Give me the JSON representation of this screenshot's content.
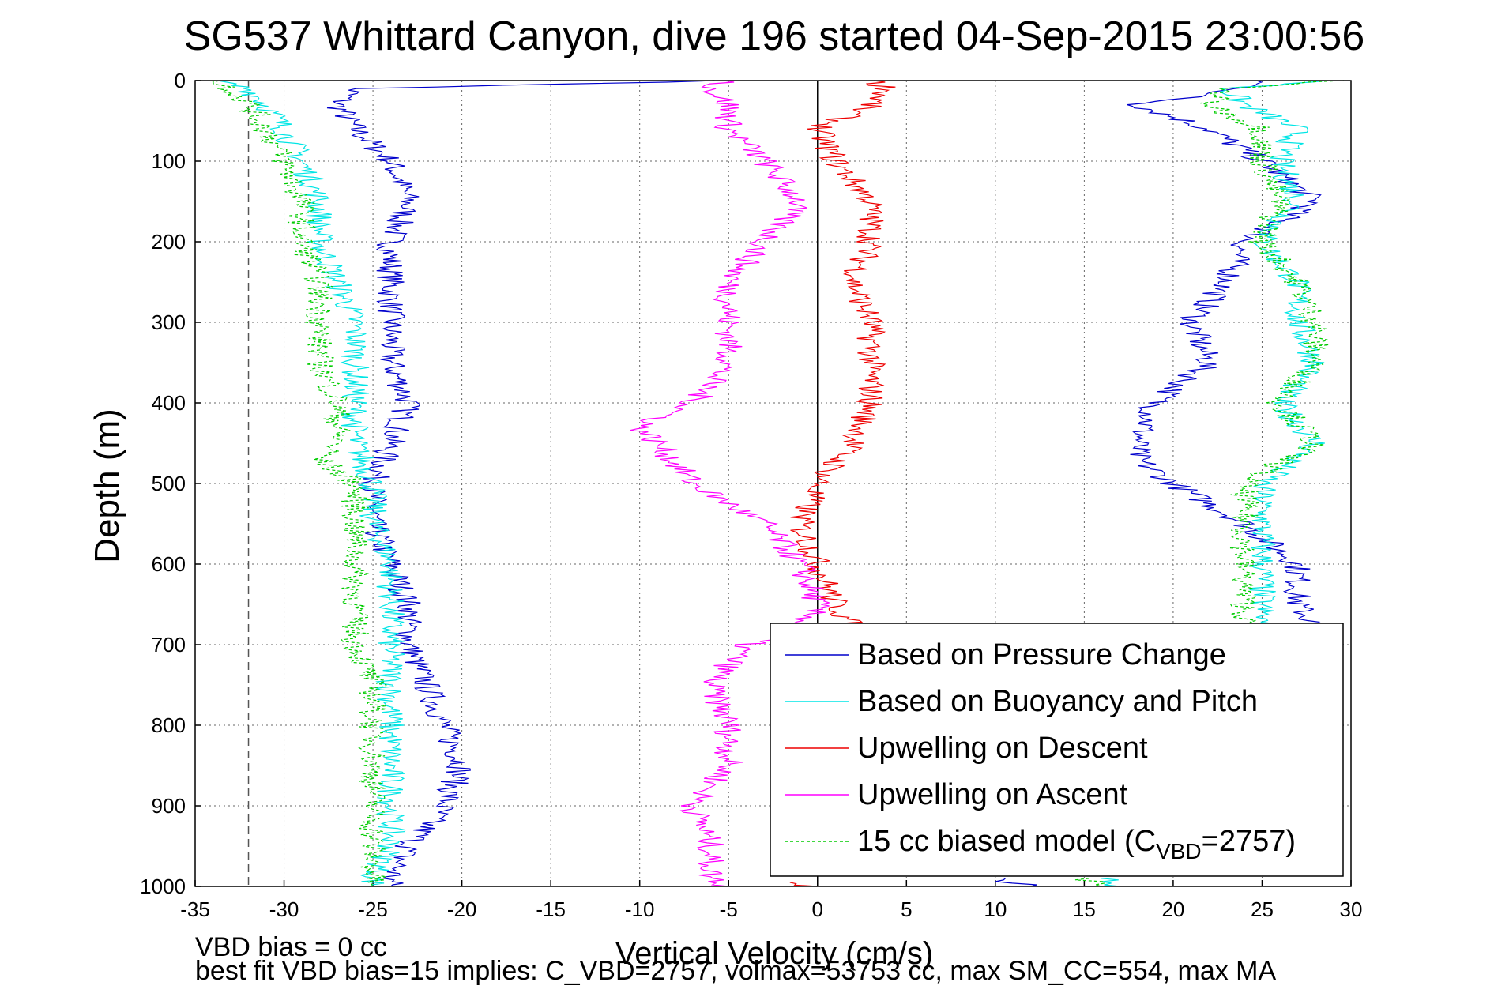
{
  "chart_data": {
    "type": "line",
    "title": "SG537 Whittard Canyon, dive 196 started 04-Sep-2015 23:00:56",
    "xlabel": "Vertical Velocity (cm/s)",
    "ylabel": "Depth (m)",
    "xlim": [
      -35,
      30
    ],
    "ylim": [
      1000,
      0
    ],
    "y_inverted": true,
    "grid": true,
    "legend_position": "bottom-right",
    "x_ticks": [
      "-35",
      "-30",
      "-25",
      "-20",
      "-15",
      "-10",
      "-5",
      "0",
      "5",
      "10",
      "15",
      "20",
      "25",
      "30"
    ],
    "y_ticks": [
      "0",
      "100",
      "200",
      "300",
      "400",
      "500",
      "600",
      "700",
      "800",
      "900",
      "1000"
    ],
    "reference_lines": [
      {
        "axis": "x",
        "value": -32,
        "style": "dashed",
        "color": "#555555"
      },
      {
        "axis": "x",
        "value": 0,
        "style": "solid",
        "color": "#000000"
      }
    ],
    "depths": [
      0,
      10,
      30,
      60,
      100,
      150,
      200,
      250,
      300,
      350,
      400,
      450,
      500,
      550,
      600,
      650,
      700,
      750,
      800,
      850,
      900,
      950,
      990,
      1000
    ],
    "series": [
      {
        "name": "Based on Pressure Change",
        "color": "#0000cc",
        "segments": [
          {
            "d": [
              0,
              10,
              30,
              60,
              100,
              150,
              200,
              250,
              300,
              350,
              400,
              450,
              500,
              550,
              600,
              650,
              700,
              750,
              800,
              850,
              900,
              950,
              990,
              1000
            ],
            "v": [
              -5,
              -26,
              -27,
              -26,
              -24,
              -23,
              -24,
              -24,
              -24,
              -24,
              -23,
              -24,
              -25,
              -25,
              -24,
              -23,
              -23,
              -22,
              -21,
              -20,
              -21,
              -23,
              -24,
              -24
            ]
          },
          {
            "d": [
              0,
              10,
              30,
              60,
              100,
              150,
              200,
              250,
              300,
              350,
              400,
              450,
              470,
              500,
              550,
              600,
              650,
              680
            ],
            "v": [
              25,
              24,
              18,
              22,
              25,
              28,
              24,
              23,
              21,
              22,
              19,
              18,
              18,
              20,
              24,
              27,
              27,
              28
            ]
          },
          {
            "d": [
              990,
              1000
            ],
            "v": [
              10,
              12
            ]
          }
        ]
      },
      {
        "name": "Based on Buoyancy and Pitch",
        "color": "#00e5e5",
        "segments": [
          {
            "d": [
              0,
              10,
              30,
              60,
              100,
              150,
              200,
              250,
              300,
              350,
              400,
              450,
              500,
              550,
              600,
              650,
              700,
              750,
              800,
              850,
              900,
              950,
              990,
              1000
            ],
            "v": [
              -34,
              -32,
              -31,
              -30,
              -29,
              -28,
              -28,
              -27,
              -26,
              -26,
              -26,
              -26,
              -25,
              -25,
              -24,
              -24,
              -24,
              -24,
              -24,
              -24,
              -24,
              -24,
              -25,
              -25
            ]
          },
          {
            "d": [
              0,
              10,
              30,
              60,
              100,
              150,
              200,
              250,
              300,
              350,
              400,
              450,
              500,
              550,
              600,
              650,
              680
            ],
            "v": [
              29,
              23,
              24,
              27,
              26,
              27,
              25,
              27,
              27,
              28,
              26,
              28,
              25,
              25,
              25,
              25,
              25
            ]
          },
          {
            "d": [
              990,
              1000
            ],
            "v": [
              16,
              17
            ]
          }
        ]
      },
      {
        "name": "Upwelling on Descent",
        "color": "#ee0000",
        "segments": [
          {
            "d": [
              0,
              10,
              30,
              60,
              100,
              150,
              200,
              250,
              300,
              350,
              400,
              450,
              500,
              550,
              600,
              650,
              680
            ],
            "v": [
              3,
              4,
              3,
              0,
              1,
              3,
              3,
              2,
              3,
              3,
              3,
              2,
              0,
              -1,
              0,
              1,
              2
            ]
          },
          {
            "d": [
              995,
              1000
            ],
            "v": [
              -2,
              0
            ]
          }
        ]
      },
      {
        "name": "Upwelling on Ascent",
        "color": "#ff00ff",
        "segments": [
          {
            "d": [
              0,
              10,
              30,
              60,
              100,
              150,
              200,
              250,
              300,
              350,
              400,
              430,
              450,
              500,
              550,
              600,
              650,
              680,
              700,
              750,
              800,
              850,
              900,
              950,
              990,
              1000
            ],
            "v": [
              -5,
              -6,
              -5,
              -5,
              -3,
              -1,
              -3,
              -5,
              -5,
              -5,
              -7,
              -10,
              -9,
              -7,
              -3,
              -1,
              0,
              -1,
              -4,
              -6,
              -5,
              -5,
              -7,
              -6,
              -6,
              -5
            ]
          }
        ]
      },
      {
        "name": "15 cc biased model (C_VBD=2757)",
        "color": "#00cc00",
        "dashed": true,
        "segments": [
          {
            "d": [
              0,
              10,
              30,
              60,
              100,
              150,
              200,
              250,
              300,
              350,
              400,
              450,
              470,
              500,
              550,
              600,
              650,
              700,
              750,
              800,
              850,
              900,
              950,
              990,
              1000
            ],
            "v": [
              -34,
              -33,
              -32,
              -31,
              -30,
              -29,
              -29,
              -28,
              -28,
              -28,
              -27,
              -27,
              -28,
              -26,
              -26,
              -26,
              -26,
              -26,
              -25,
              -25,
              -25,
              -25,
              -25,
              -25,
              -25
            ]
          },
          {
            "d": [
              0,
              10,
              30,
              60,
              100,
              150,
              200,
              250,
              300,
              350,
              400,
              450,
              500,
              550,
              600,
              650,
              680
            ],
            "v": [
              29,
              23,
              22,
              25,
              25,
              26,
              25,
              27,
              28,
              28,
              26,
              28,
              24,
              24,
              24,
              24,
              24
            ]
          },
          {
            "d": [
              990,
              1000
            ],
            "v": [
              15,
              16
            ]
          }
        ]
      }
    ]
  },
  "legend": {
    "entries": [
      {
        "label": "Based on Pressure Change",
        "color": "#0000cc",
        "dashed": false
      },
      {
        "label": "Based on Buoyancy and Pitch",
        "color": "#00e5e5",
        "dashed": false
      },
      {
        "label": "Upwelling on Descent",
        "color": "#ee0000",
        "dashed": false
      },
      {
        "label": "Upwelling on Ascent",
        "color": "#ff00ff",
        "dashed": false
      },
      {
        "label": "15 cc biased model (C",
        "sub": "VBD",
        "suffix": "=2757)",
        "color": "#00cc00",
        "dashed": true
      }
    ]
  },
  "footer": {
    "line1": "VBD bias = 0 cc",
    "line2": "best fit VBD bias=15 implies: C_VBD=2757, volmax=53753 cc, max SM_CC=554, max MA"
  }
}
